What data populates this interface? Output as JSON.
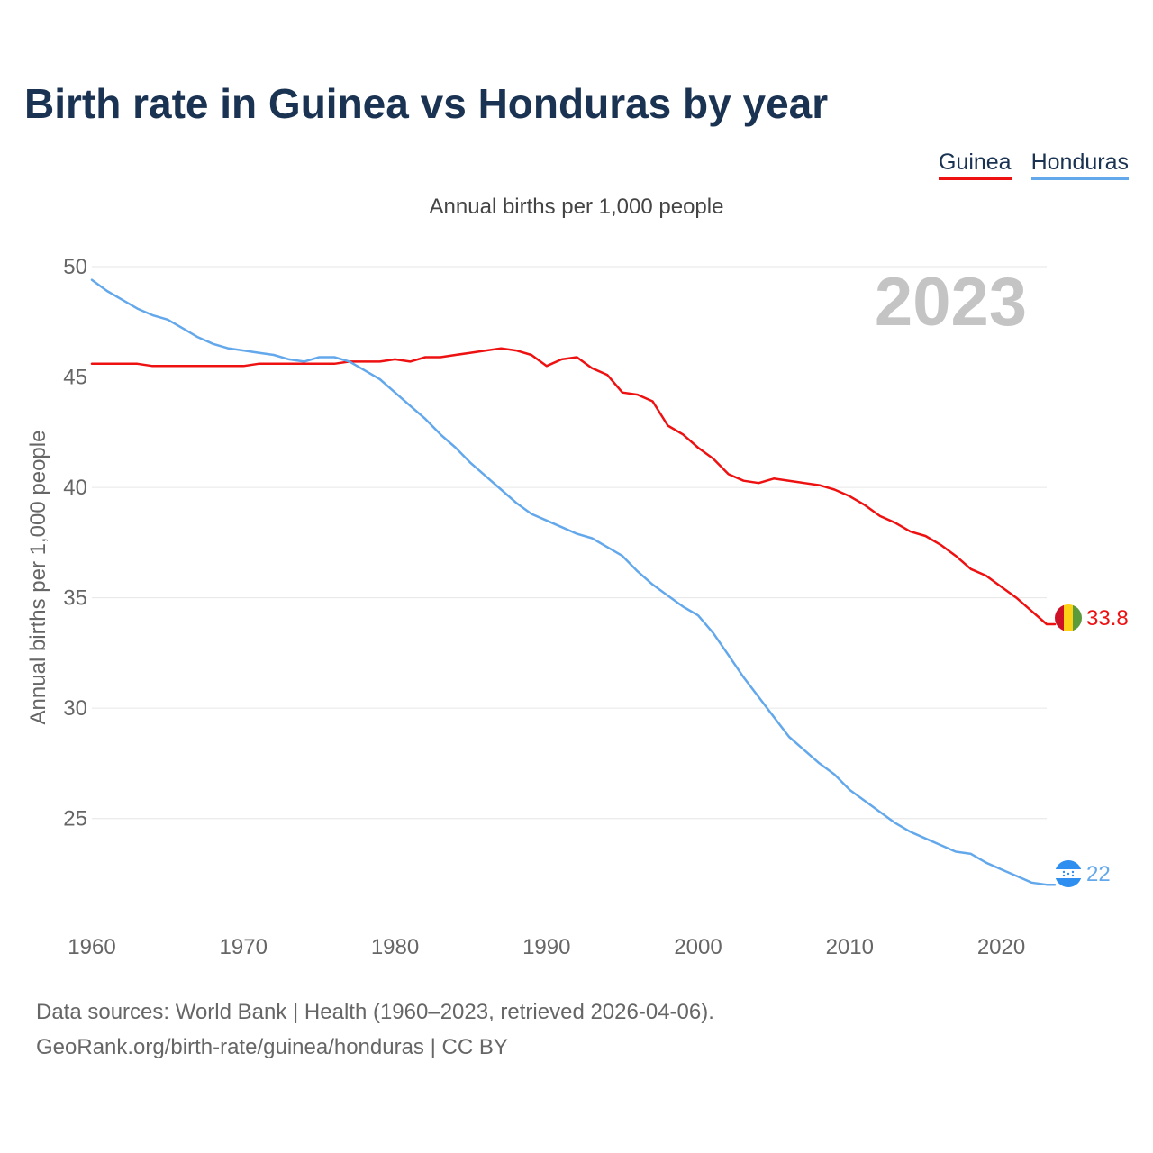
{
  "title": "Birth rate in Guinea vs Honduras by year",
  "subtitle": "Annual births per 1,000 people",
  "legend": [
    {
      "label": "Guinea",
      "color": "#ee1111"
    },
    {
      "label": "Honduras",
      "color": "#64a8ec"
    }
  ],
  "year_badge": "2023",
  "footer": {
    "line1": "Data sources: World Bank | Health (1960–2023, retrieved 2026-04-06).",
    "line2": "GeoRank.org/birth-rate/guinea/honduras | CC BY"
  },
  "colors": {
    "guinea": "#ee1111",
    "honduras": "#64a8ec",
    "title": "#1b3352",
    "badge": "#c4c4c4"
  },
  "chart_data": {
    "type": "line",
    "title": "Birth rate in Guinea vs Honduras by year",
    "subtitle": "Annual births per 1,000 people",
    "xlabel": "",
    "ylabel": "Annual births per 1,000 people",
    "xlim": [
      1960,
      2023
    ],
    "ylim": [
      20.5,
      50
    ],
    "y_ticks": [
      25,
      30,
      35,
      40,
      45,
      50
    ],
    "x_ticks": [
      1960,
      1970,
      1980,
      1990,
      2000,
      2010,
      2020
    ],
    "grid": true,
    "legend_position": "top-right",
    "x": [
      1960,
      1961,
      1962,
      1963,
      1964,
      1965,
      1966,
      1967,
      1968,
      1969,
      1970,
      1971,
      1972,
      1973,
      1974,
      1975,
      1976,
      1977,
      1978,
      1979,
      1980,
      1981,
      1982,
      1983,
      1984,
      1985,
      1986,
      1987,
      1988,
      1989,
      1990,
      1991,
      1992,
      1993,
      1994,
      1995,
      1996,
      1997,
      1998,
      1999,
      2000,
      2001,
      2002,
      2003,
      2004,
      2005,
      2006,
      2007,
      2008,
      2009,
      2010,
      2011,
      2012,
      2013,
      2014,
      2015,
      2016,
      2017,
      2018,
      2019,
      2020,
      2021,
      2022,
      2023
    ],
    "series": [
      {
        "name": "Guinea",
        "end_label": "33.8",
        "values": [
          45.6,
          45.6,
          45.6,
          45.6,
          45.5,
          45.5,
          45.5,
          45.5,
          45.5,
          45.5,
          45.5,
          45.6,
          45.6,
          45.6,
          45.6,
          45.6,
          45.6,
          45.7,
          45.7,
          45.7,
          45.8,
          45.7,
          45.9,
          45.9,
          46.0,
          46.1,
          46.2,
          46.3,
          46.2,
          46.0,
          45.5,
          45.8,
          45.9,
          45.4,
          45.1,
          44.3,
          44.2,
          43.9,
          42.8,
          42.4,
          41.8,
          41.3,
          40.6,
          40.3,
          40.2,
          40.4,
          40.3,
          40.2,
          40.1,
          39.9,
          39.6,
          39.2,
          38.7,
          38.4,
          38.0,
          37.8,
          37.4,
          36.9,
          36.3,
          36.0,
          35.5,
          35.0,
          34.4,
          33.8
        ]
      },
      {
        "name": "Honduras",
        "end_label": "22",
        "values": [
          49.4,
          48.9,
          48.5,
          48.1,
          47.8,
          47.6,
          47.2,
          46.8,
          46.5,
          46.3,
          46.2,
          46.1,
          46.0,
          45.8,
          45.7,
          45.9,
          45.9,
          45.7,
          45.3,
          44.9,
          44.3,
          43.7,
          43.1,
          42.4,
          41.8,
          41.1,
          40.5,
          39.9,
          39.3,
          38.8,
          38.5,
          38.2,
          37.9,
          37.7,
          37.3,
          36.9,
          36.2,
          35.6,
          35.1,
          34.6,
          34.2,
          33.4,
          32.4,
          31.4,
          30.5,
          29.6,
          28.7,
          28.1,
          27.5,
          27.0,
          26.3,
          25.8,
          25.3,
          24.8,
          24.4,
          24.1,
          23.8,
          23.5,
          23.4,
          23.0,
          22.7,
          22.4,
          22.1,
          22.0
        ]
      }
    ]
  }
}
